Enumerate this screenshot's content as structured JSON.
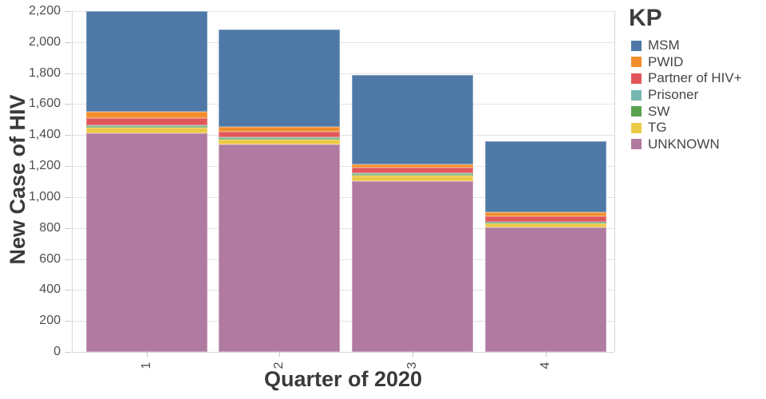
{
  "chart_data": {
    "type": "bar",
    "stacked": true,
    "title": "",
    "xlabel": "Quarter of 2020",
    "ylabel": "New Case of HIV",
    "categories": [
      "1",
      "2",
      "3",
      "4"
    ],
    "series": [
      {
        "name": "MSM",
        "color": "#4e79a7",
        "values": [
          650,
          625,
          580,
          460
        ]
      },
      {
        "name": "PWID",
        "color": "#f28e2b",
        "values": [
          42,
          31,
          20,
          23
        ]
      },
      {
        "name": "Partner of HIV+",
        "color": "#e15759",
        "values": [
          45,
          40,
          38,
          36
        ]
      },
      {
        "name": "Prisoner",
        "color": "#76b7b2",
        "values": [
          3,
          3,
          3,
          3
        ]
      },
      {
        "name": "SW",
        "color": "#59a14f",
        "values": [
          10,
          9,
          9,
          8
        ]
      },
      {
        "name": "TG",
        "color": "#edc948",
        "values": [
          40,
          32,
          35,
          25
        ]
      },
      {
        "name": "UNKNOWN",
        "color": "#b07aa1",
        "values": [
          1410,
          1340,
          1105,
          805
        ]
      }
    ],
    "stack_order_bottom_to_top": [
      "UNKNOWN",
      "TG",
      "SW",
      "Prisoner",
      "Partner of HIV+",
      "PWID",
      "MSM"
    ],
    "totals": [
      2200,
      2080,
      1790,
      1360
    ],
    "ylim": [
      0,
      2200
    ],
    "y_ticks": [
      {
        "v": 0,
        "label": "0"
      },
      {
        "v": 200,
        "label": "200"
      },
      {
        "v": 400,
        "label": "400"
      },
      {
        "v": 600,
        "label": "600"
      },
      {
        "v": 800,
        "label": "800"
      },
      {
        "v": 1000,
        "label": "1,000"
      },
      {
        "v": 1200,
        "label": "1,200"
      },
      {
        "v": 1400,
        "label": "1,400"
      },
      {
        "v": 1600,
        "label": "1,600"
      },
      {
        "v": 1800,
        "label": "1,800"
      },
      {
        "v": 2000,
        "label": "2,000"
      },
      {
        "v": 2200,
        "label": "2,200"
      }
    ],
    "grid": true,
    "legend_position": "right"
  },
  "legend": {
    "title": "KP",
    "items": [
      {
        "label": "MSM",
        "color": "#4e79a7"
      },
      {
        "label": "PWID",
        "color": "#f28e2b"
      },
      {
        "label": "Partner of HIV+",
        "color": "#e15759"
      },
      {
        "label": "Prisoner",
        "color": "#76b7b2"
      },
      {
        "label": "SW",
        "color": "#59a14f"
      },
      {
        "label": "TG",
        "color": "#edc948"
      },
      {
        "label": "UNKNOWN",
        "color": "#b07aa1"
      }
    ]
  },
  "colors": {
    "background": "#ffffff",
    "gridline": "#e3e3e3",
    "axis_line": "#d7d7d7",
    "tick_mark": "#c9c9c9",
    "tick_label": "#4e4e4e",
    "axis_title": "#3a3a3a",
    "legend_title": "#3d3d3d",
    "legend_label": "#454545"
  }
}
